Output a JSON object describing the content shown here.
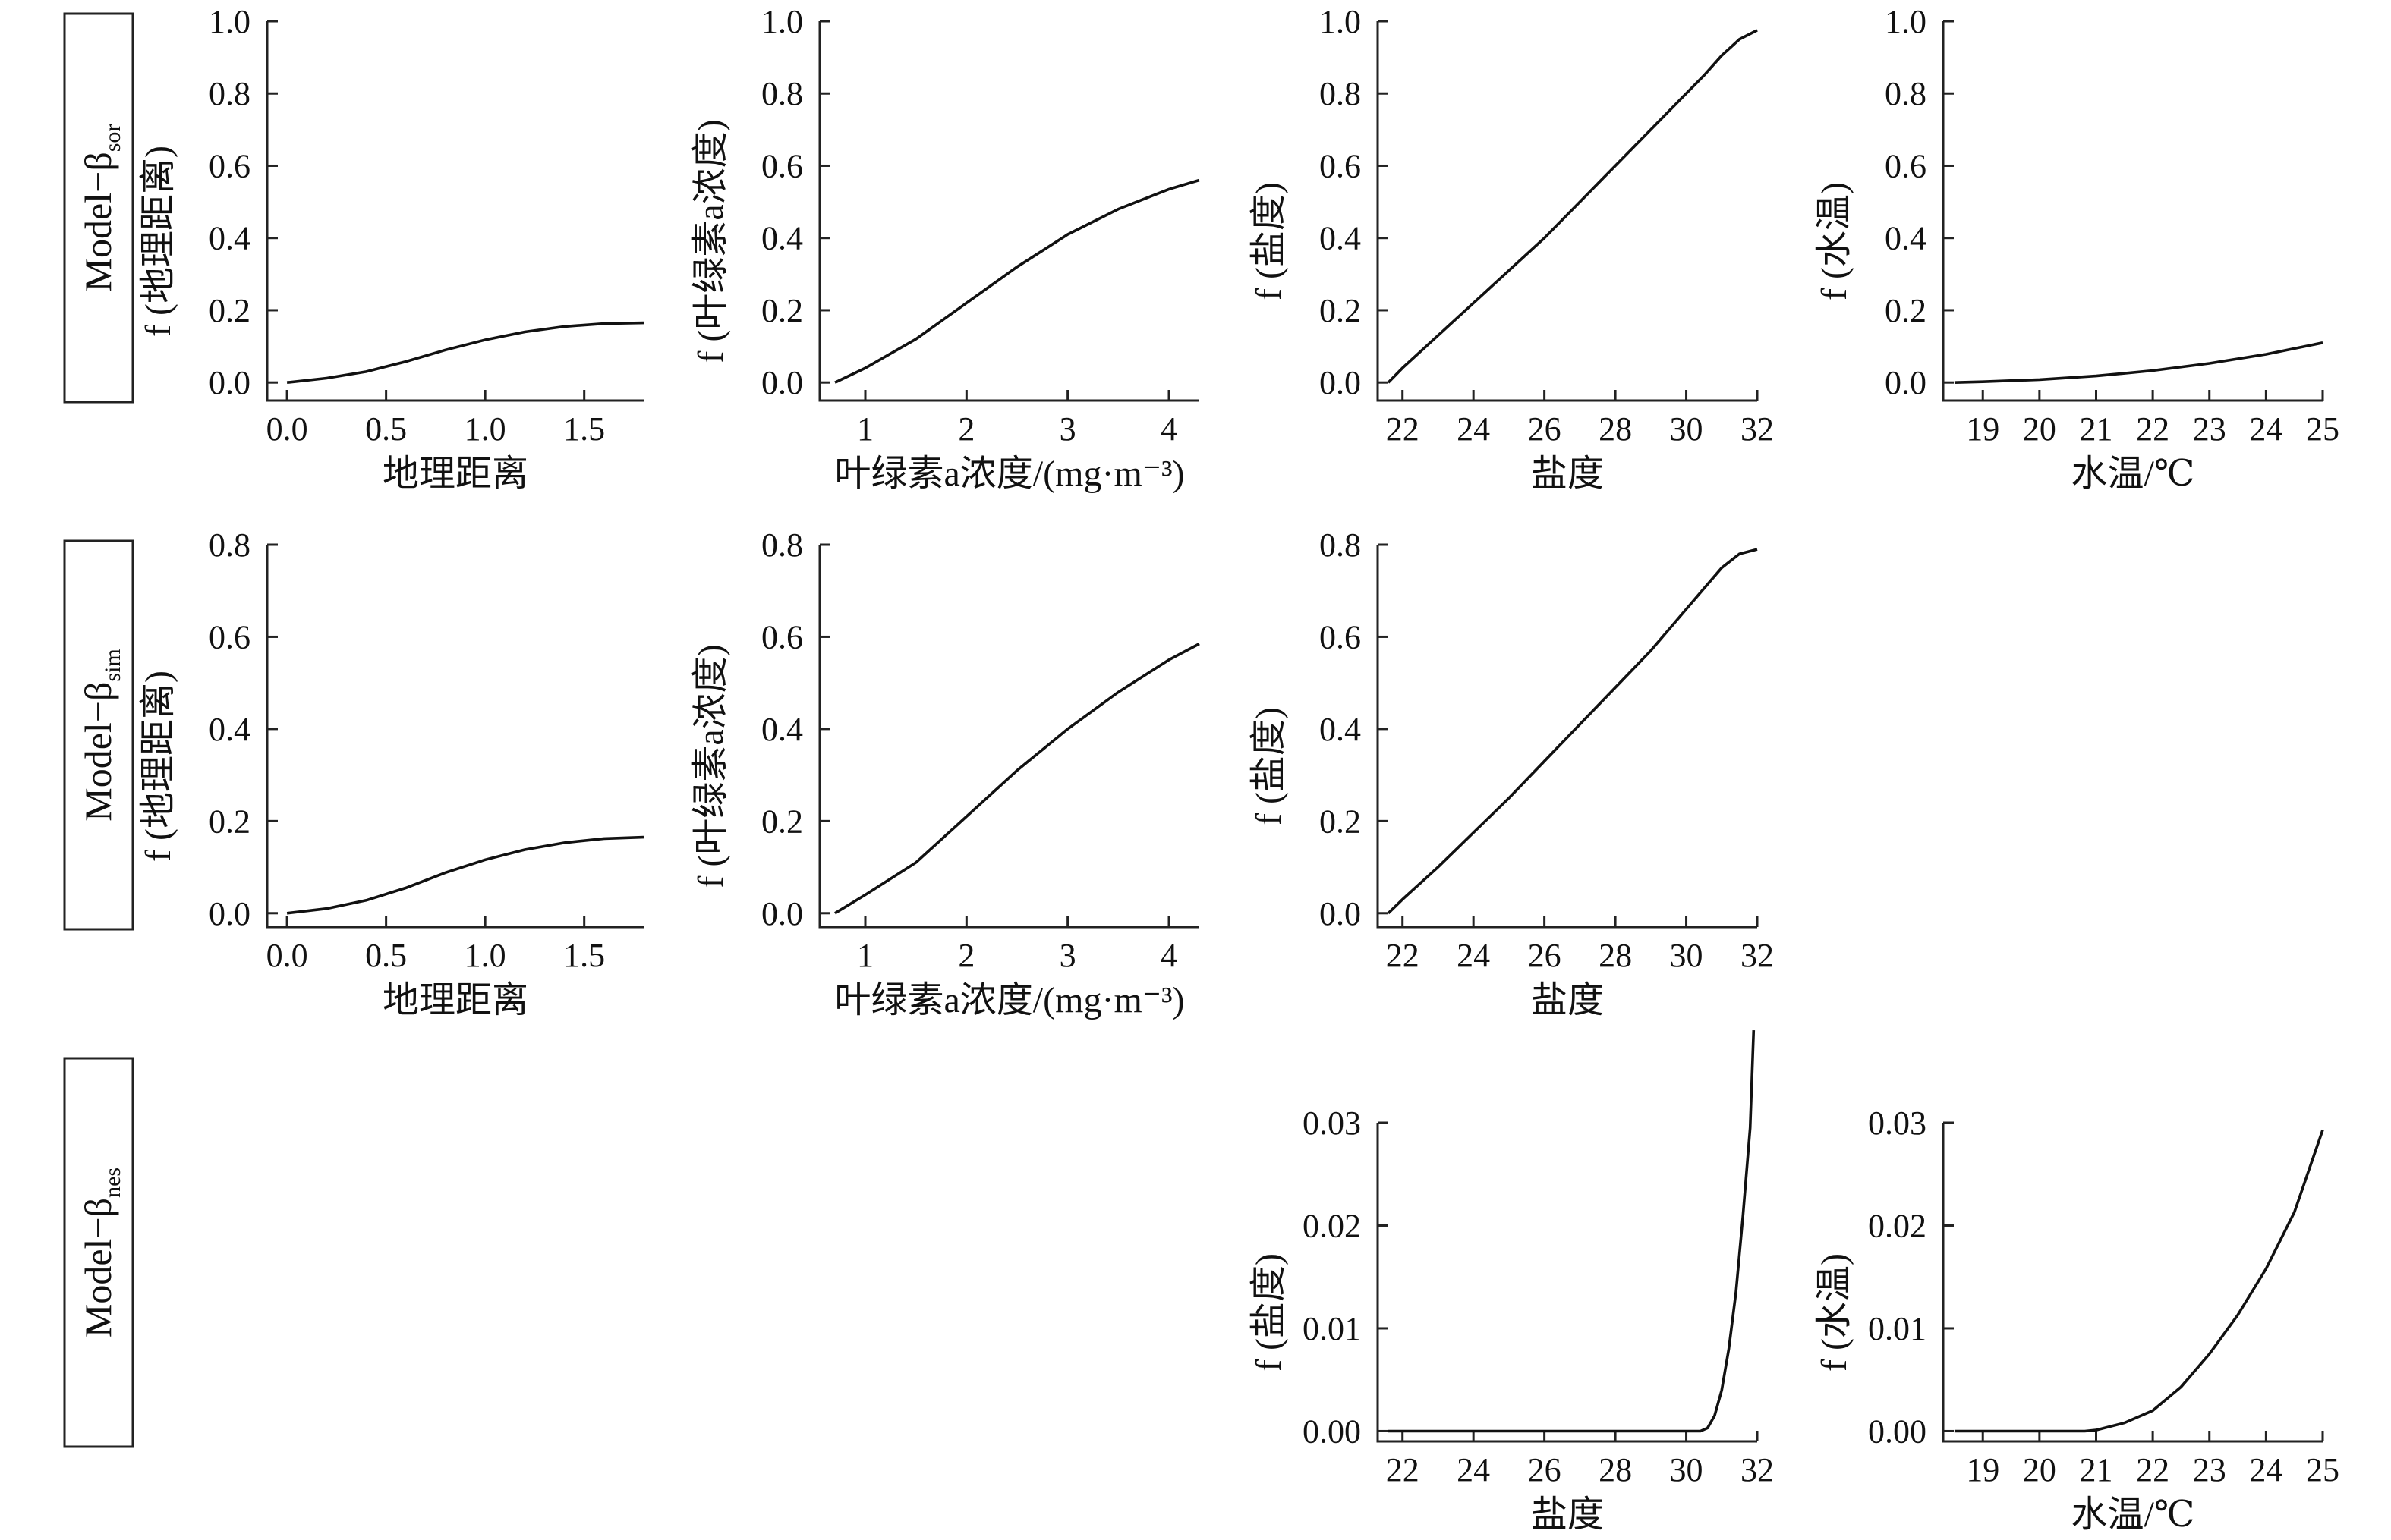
{
  "chart_data": [
    {
      "type": "line",
      "row_label": "Model−β",
      "row_subscript": "sor",
      "xlabel": "地理距离",
      "ylabel": "f (地理距离)",
      "xlim": [
        -0.1,
        1.8
      ],
      "ylim": [
        -0.05,
        1.0
      ],
      "xticks": [
        0.0,
        0.5,
        1.0,
        1.5
      ],
      "xtick_labels": [
        "0.0",
        "0.5",
        "1.0",
        "1.5"
      ],
      "yticks": [
        0.0,
        0.2,
        0.4,
        0.6,
        0.8,
        1.0
      ],
      "ytick_labels": [
        "0.0",
        "0.2",
        "0.4",
        "0.6",
        "0.8",
        "1.0"
      ],
      "series": [
        {
          "x": [
            0.0,
            0.2,
            0.4,
            0.6,
            0.8,
            1.0,
            1.2,
            1.4,
            1.6,
            1.8
          ],
          "y": [
            0.0,
            0.012,
            0.03,
            0.058,
            0.09,
            0.118,
            0.14,
            0.155,
            0.163,
            0.165
          ]
        }
      ]
    },
    {
      "type": "line",
      "xlabel": "叶绿素a浓度/(mg·m⁻³)",
      "ylabel": "f (叶绿素a浓度)",
      "xlim": [
        0.55,
        4.3
      ],
      "ylim": [
        -0.05,
        1.0
      ],
      "xticks": [
        1,
        2,
        3,
        4
      ],
      "xtick_labels": [
        "1",
        "2",
        "3",
        "4"
      ],
      "yticks": [
        0.0,
        0.2,
        0.4,
        0.6,
        0.8,
        1.0
      ],
      "ytick_labels": [
        "0.0",
        "0.2",
        "0.4",
        "0.6",
        "0.8",
        "1.0"
      ],
      "series": [
        {
          "x": [
            0.7,
            1.0,
            1.5,
            2.0,
            2.5,
            3.0,
            3.5,
            4.0,
            4.3
          ],
          "y": [
            0.0,
            0.04,
            0.12,
            0.22,
            0.32,
            0.41,
            0.48,
            0.535,
            0.56
          ]
        }
      ]
    },
    {
      "type": "line",
      "xlabel": "盐度",
      "ylabel": "f (盐度)",
      "xlim": [
        21.3,
        32.0
      ],
      "ylim": [
        -0.05,
        1.0
      ],
      "xticks": [
        22,
        24,
        26,
        28,
        30,
        32
      ],
      "xtick_labels": [
        "22",
        "24",
        "26",
        "28",
        "30",
        "32"
      ],
      "yticks": [
        0.0,
        0.2,
        0.4,
        0.6,
        0.8,
        1.0
      ],
      "ytick_labels": [
        "0.0",
        "0.2",
        "0.4",
        "0.6",
        "0.8",
        "1.0"
      ],
      "series": [
        {
          "x": [
            21.6,
            22.0,
            23.0,
            24.0,
            25.0,
            26.0,
            27.0,
            28.0,
            29.0,
            30.0,
            30.5,
            31.0,
            31.5,
            32.0
          ],
          "y": [
            0.0,
            0.04,
            0.13,
            0.22,
            0.31,
            0.4,
            0.5,
            0.6,
            0.7,
            0.8,
            0.85,
            0.905,
            0.95,
            0.975
          ]
        }
      ]
    },
    {
      "type": "line",
      "xlabel": "水温/℃",
      "ylabel": "f (水温)",
      "xlim": [
        18.3,
        25.0
      ],
      "ylim": [
        -0.05,
        1.0
      ],
      "xticks": [
        19,
        20,
        21,
        22,
        23,
        24,
        25
      ],
      "xtick_labels": [
        "19",
        "20",
        "21",
        "22",
        "23",
        "24",
        "25"
      ],
      "yticks": [
        0.0,
        0.2,
        0.4,
        0.6,
        0.8,
        1.0
      ],
      "ytick_labels": [
        "0.0",
        "0.2",
        "0.4",
        "0.6",
        "0.8",
        "1.0"
      ],
      "series": [
        {
          "x": [
            18.5,
            19.0,
            20.0,
            21.0,
            22.0,
            23.0,
            24.0,
            25.0
          ],
          "y": [
            0.0,
            0.002,
            0.008,
            0.018,
            0.033,
            0.053,
            0.078,
            0.11
          ]
        }
      ]
    },
    {
      "type": "line",
      "row_label": "Model−β",
      "row_subscript": "sim",
      "xlabel": "地理距离",
      "ylabel": "f (地理距离)",
      "xlim": [
        -0.1,
        1.8
      ],
      "ylim": [
        -0.03,
        0.8
      ],
      "xticks": [
        0.0,
        0.5,
        1.0,
        1.5
      ],
      "xtick_labels": [
        "0.0",
        "0.5",
        "1.0",
        "1.5"
      ],
      "yticks": [
        0.0,
        0.2,
        0.4,
        0.6,
        0.8
      ],
      "ytick_labels": [
        "0.0",
        "0.2",
        "0.4",
        "0.6",
        "0.8"
      ],
      "series": [
        {
          "x": [
            0.0,
            0.2,
            0.4,
            0.6,
            0.8,
            1.0,
            1.2,
            1.4,
            1.6,
            1.8
          ],
          "y": [
            0.0,
            0.01,
            0.028,
            0.055,
            0.088,
            0.116,
            0.138,
            0.153,
            0.162,
            0.165
          ]
        }
      ]
    },
    {
      "type": "line",
      "xlabel": "叶绿素a浓度/(mg·m⁻³)",
      "ylabel": "f (叶绿素a浓度)",
      "xlim": [
        0.55,
        4.3
      ],
      "ylim": [
        -0.03,
        0.8
      ],
      "xticks": [
        1,
        2,
        3,
        4
      ],
      "xtick_labels": [
        "1",
        "2",
        "3",
        "4"
      ],
      "yticks": [
        0.0,
        0.2,
        0.4,
        0.6,
        0.8
      ],
      "ytick_labels": [
        "0.0",
        "0.2",
        "0.4",
        "0.6",
        "0.8"
      ],
      "series": [
        {
          "x": [
            0.7,
            1.0,
            1.5,
            2.0,
            2.5,
            3.0,
            3.5,
            4.0,
            4.3
          ],
          "y": [
            0.0,
            0.04,
            0.11,
            0.21,
            0.31,
            0.4,
            0.48,
            0.55,
            0.585
          ]
        }
      ]
    },
    {
      "type": "line",
      "xlabel": "盐度",
      "ylabel": "f (盐度)",
      "xlim": [
        21.3,
        32.0
      ],
      "ylim": [
        -0.03,
        0.8
      ],
      "xticks": [
        22,
        24,
        26,
        28,
        30,
        32
      ],
      "xtick_labels": [
        "22",
        "24",
        "26",
        "28",
        "30",
        "32"
      ],
      "yticks": [
        0.0,
        0.2,
        0.4,
        0.6,
        0.8
      ],
      "ytick_labels": [
        "0.0",
        "0.2",
        "0.4",
        "0.6",
        "0.8"
      ],
      "series": [
        {
          "x": [
            21.6,
            22.0,
            23.0,
            24.0,
            25.0,
            26.0,
            27.0,
            28.0,
            29.0,
            30.0,
            30.5,
            31.0,
            31.5,
            32.0
          ],
          "y": [
            0.0,
            0.03,
            0.1,
            0.175,
            0.25,
            0.33,
            0.41,
            0.49,
            0.57,
            0.66,
            0.705,
            0.75,
            0.78,
            0.79
          ]
        }
      ]
    },
    {
      "type": "line",
      "row_label": "Model−β",
      "row_subscript": "nes",
      "xlabel": "盐度",
      "ylabel": "f (盐度)",
      "xlim": [
        21.3,
        32.0
      ],
      "ylim": [
        -0.001,
        0.03
      ],
      "xticks": [
        22,
        24,
        26,
        28,
        30,
        32
      ],
      "xtick_labels": [
        "22",
        "24",
        "26",
        "28",
        "30",
        "32"
      ],
      "yticks": [
        0.0,
        0.01,
        0.02,
        0.03
      ],
      "ytick_labels": [
        "0.00",
        "0.01",
        "0.02",
        "0.03"
      ],
      "series": [
        {
          "x": [
            21.6,
            25.0,
            30.0,
            30.4,
            30.6,
            30.8,
            31.0,
            31.2,
            31.4,
            31.6,
            31.8,
            31.9
          ],
          "y": [
            0.0,
            0.0,
            0.0,
            0.0,
            0.0003,
            0.0015,
            0.004,
            0.008,
            0.0135,
            0.021,
            0.0295,
            0.039
          ]
        }
      ]
    },
    {
      "type": "line",
      "xlabel": "水温/℃",
      "ylabel": "f (水温)",
      "xlim": [
        18.3,
        25.0
      ],
      "ylim": [
        -0.001,
        0.03
      ],
      "xticks": [
        19,
        20,
        21,
        22,
        23,
        24,
        25
      ],
      "xtick_labels": [
        "19",
        "20",
        "21",
        "22",
        "23",
        "24",
        "25"
      ],
      "yticks": [
        0.0,
        0.01,
        0.02,
        0.03
      ],
      "ytick_labels": [
        "0.00",
        "0.01",
        "0.02",
        "0.03"
      ],
      "series": [
        {
          "x": [
            18.5,
            19.0,
            20.0,
            20.8,
            21.0,
            21.5,
            22.0,
            22.5,
            23.0,
            23.5,
            24.0,
            24.5,
            25.0
          ],
          "y": [
            0.0,
            0.0,
            0.0,
            0.0,
            0.0001,
            0.0008,
            0.002,
            0.0043,
            0.0075,
            0.0113,
            0.0158,
            0.0213,
            0.0293
          ]
        }
      ]
    }
  ]
}
